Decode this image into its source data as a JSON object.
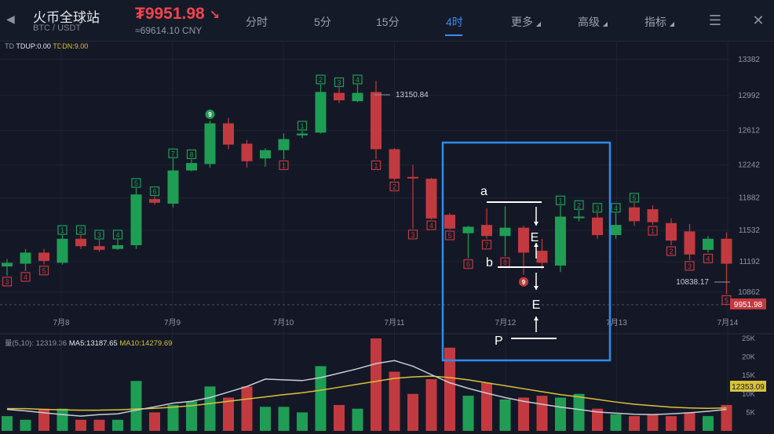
{
  "header": {
    "title": "火币全球站",
    "pair": "BTC / USDT",
    "price_prefix": "₮",
    "price": "9951.98",
    "price_cny": "≈69614.10 CNY",
    "tabs": [
      {
        "label": "分时"
      },
      {
        "label": "5分"
      },
      {
        "label": "15分"
      },
      {
        "label": "4时",
        "active": true
      },
      {
        "label": "更多"
      },
      {
        "label": "高级"
      },
      {
        "label": "指标"
      }
    ]
  },
  "indicators": {
    "td_prefix": "TD",
    "td_up": "TDUP:0.00",
    "td_dn": "TDDN:9.00",
    "vol_prefix": "量(5,10): 12319.36",
    "ma5": "MA5:13187.65",
    "ma10": "MA10:14279.69"
  },
  "price_axis": [
    "13382",
    "12992",
    "12612",
    "12242",
    "11882",
    "11532",
    "11192",
    "10862"
  ],
  "price_ticks_values": [
    13382,
    12992,
    12612,
    12242,
    11882,
    11532,
    11192,
    10862
  ],
  "current_price_tag": "9951.98",
  "high_marker": "13150.84",
  "low_marker": "10838.17",
  "date_axis": [
    "7月8",
    "7月9",
    "7月10",
    "7月11",
    "7月12",
    "7月13",
    "7月14"
  ],
  "volume_axis": [
    "25K",
    "20K",
    "15K",
    "10K",
    "5K"
  ],
  "volume_tag": "12353.09",
  "annotations": {
    "a": "a",
    "b": "b",
    "e1": "E",
    "e2": "E",
    "p": "P"
  },
  "colors": {
    "up": "#1f9d55",
    "down": "#c23a3f",
    "ma5": "#c9ccd6",
    "ma10": "#d9c23a",
    "highlight_box": "#2d8cf0"
  },
  "chart_data": {
    "type": "candlestick",
    "candles": [
      {
        "o": 11140,
        "h": 11220,
        "l": 11040,
        "c": 11180,
        "td": "3",
        "tdc": "down"
      },
      {
        "o": 11170,
        "h": 11330,
        "l": 11090,
        "c": 11290,
        "td": "4",
        "tdc": "down"
      },
      {
        "o": 11290,
        "h": 11330,
        "l": 11160,
        "c": 11200,
        "td": "5",
        "tdc": "down"
      },
      {
        "o": 11180,
        "h": 11480,
        "l": 11160,
        "c": 11440,
        "td": "1",
        "tdc": "up"
      },
      {
        "o": 11440,
        "h": 11480,
        "l": 11330,
        "c": 11360,
        "td": "2",
        "tdc": "up"
      },
      {
        "o": 11360,
        "h": 11430,
        "l": 11300,
        "c": 11320,
        "td": "3",
        "tdc": "up"
      },
      {
        "o": 11330,
        "h": 11430,
        "l": 11320,
        "c": 11370,
        "td": "4",
        "tdc": "up"
      },
      {
        "o": 11370,
        "h": 11990,
        "l": 11330,
        "c": 11920,
        "td": "5",
        "tdc": "up"
      },
      {
        "o": 11870,
        "h": 11900,
        "l": 11810,
        "c": 11830,
        "td": "6",
        "tdc": "up"
      },
      {
        "o": 11820,
        "h": 12310,
        "l": 11780,
        "c": 12180,
        "td": "7",
        "tdc": "up"
      },
      {
        "o": 12180,
        "h": 12300,
        "l": 12170,
        "c": 12260,
        "td": "8",
        "tdc": "up"
      },
      {
        "o": 12250,
        "h": 12720,
        "l": 12210,
        "c": 12690,
        "td": "9",
        "tdc": "solid"
      },
      {
        "o": 12690,
        "h": 12750,
        "l": 12410,
        "c": 12460,
        "td": "",
        "tdc": ""
      },
      {
        "o": 12470,
        "h": 12510,
        "l": 12210,
        "c": 12280,
        "td": "",
        "tdc": ""
      },
      {
        "o": 12310,
        "h": 12420,
        "l": 12220,
        "c": 12400,
        "td": "",
        "tdc": ""
      },
      {
        "o": 12400,
        "h": 12580,
        "l": 12300,
        "c": 12520,
        "td": "1",
        "tdc": "down"
      },
      {
        "o": 12560,
        "h": 12610,
        "l": 12530,
        "c": 12580,
        "td": "1",
        "tdc": "up"
      },
      {
        "o": 12590,
        "h": 13110,
        "l": 12580,
        "c": 13030,
        "td": "2",
        "tdc": "up"
      },
      {
        "o": 13020,
        "h": 13080,
        "l": 12910,
        "c": 12940,
        "td": "3",
        "tdc": "up"
      },
      {
        "o": 12930,
        "h": 13110,
        "l": 12920,
        "c": 13020,
        "td": "4",
        "tdc": "up"
      },
      {
        "o": 13030,
        "h": 13150,
        "l": 12300,
        "c": 12410,
        "td": "1",
        "tdc": "down"
      },
      {
        "o": 12410,
        "h": 12420,
        "l": 12070,
        "c": 12090,
        "td": "2",
        "tdc": "down"
      },
      {
        "o": 12110,
        "h": 12240,
        "l": 11550,
        "c": 12100,
        "td": "3",
        "tdc": "down"
      },
      {
        "o": 12090,
        "h": 12100,
        "l": 11650,
        "c": 11660,
        "td": "4",
        "tdc": "down"
      },
      {
        "o": 11700,
        "h": 11720,
        "l": 11540,
        "c": 11550,
        "td": "5",
        "tdc": "down"
      },
      {
        "o": 11500,
        "h": 11580,
        "l": 11230,
        "c": 11570,
        "td": "6",
        "tdc": "down"
      },
      {
        "o": 11590,
        "h": 11770,
        "l": 11440,
        "c": 11470,
        "td": "7",
        "tdc": "down"
      },
      {
        "o": 11470,
        "h": 11790,
        "l": 11250,
        "c": 11560,
        "td": "8",
        "tdc": "down"
      },
      {
        "o": 11560,
        "h": 11580,
        "l": 11050,
        "c": 11290,
        "td": "9",
        "tdc": "solid"
      },
      {
        "o": 11310,
        "h": 11440,
        "l": 11110,
        "c": 11180,
        "td": "",
        "tdc": ""
      },
      {
        "o": 11150,
        "h": 11800,
        "l": 11080,
        "c": 11680,
        "td": "1",
        "tdc": "up"
      },
      {
        "o": 11670,
        "h": 11750,
        "l": 11630,
        "c": 11680,
        "td": "2",
        "tdc": "up"
      },
      {
        "o": 11670,
        "h": 11720,
        "l": 11440,
        "c": 11480,
        "td": "3",
        "tdc": "up"
      },
      {
        "o": 11480,
        "h": 11720,
        "l": 11440,
        "c": 11590,
        "td": "4",
        "tdc": "up"
      },
      {
        "o": 11780,
        "h": 11830,
        "l": 11580,
        "c": 11630,
        "td": "5",
        "tdc": "up"
      },
      {
        "o": 11760,
        "h": 11800,
        "l": 11590,
        "c": 11620,
        "td": "1",
        "tdc": "down"
      },
      {
        "o": 11610,
        "h": 11660,
        "l": 11370,
        "c": 11420,
        "td": "2",
        "tdc": "down"
      },
      {
        "o": 11520,
        "h": 11600,
        "l": 11210,
        "c": 11270,
        "td": "3",
        "tdc": "down"
      },
      {
        "o": 11320,
        "h": 11470,
        "l": 11290,
        "c": 11440,
        "td": "4",
        "tdc": "down"
      },
      {
        "o": 11440,
        "h": 11510,
        "l": 10840,
        "c": 11170,
        "td": "5",
        "tdc": "down"
      }
    ],
    "volumes": [
      4.0,
      3.0,
      6.0,
      6.0,
      3.0,
      3.0,
      3.0,
      13.5,
      5.0,
      7.0,
      8.0,
      12.0,
      9.0,
      12.0,
      6.5,
      6.5,
      5.0,
      17.5,
      7.0,
      6.0,
      25.0,
      16.0,
      10.0,
      14.0,
      22.5,
      9.5,
      13.0,
      8.5,
      9.0,
      9.5,
      9.0,
      10.0,
      6.0,
      4.5,
      4.0,
      4.5,
      4.0,
      5.0,
      4.0,
      7.0
    ],
    "ma5": [
      5.8,
      5.4,
      4.9,
      4.4,
      4.0,
      4.4,
      4.6,
      5.6,
      6.5,
      7.5,
      8.0,
      9.0,
      10.5,
      12.0,
      14.0,
      13.8,
      13.6,
      14.4,
      15.6,
      16.8,
      18.2,
      19.0,
      17.5,
      15.2,
      13.0,
      11.5,
      10.2,
      9.0,
      8.0,
      7.2,
      6.4,
      5.8,
      5.1,
      4.8,
      4.5,
      4.4,
      4.6,
      4.9,
      5.3,
      5.8
    ],
    "ma10": [
      6.0,
      6.0,
      5.8,
      5.7,
      5.6,
      5.6,
      5.7,
      5.9,
      6.1,
      6.4,
      6.8,
      7.4,
      8.0,
      8.6,
      9.2,
      9.8,
      10.3,
      11.0,
      11.8,
      12.6,
      13.4,
      14.2,
      14.6,
      14.8,
      14.4,
      13.8,
      13.0,
      12.2,
      11.4,
      10.6,
      9.8,
      9.2,
      8.5,
      7.8,
      7.2,
      6.8,
      6.4,
      6.2,
      6.1,
      6.2
    ],
    "volume_range": [
      0,
      25
    ],
    "price_range": [
      10700,
      13500
    ]
  }
}
